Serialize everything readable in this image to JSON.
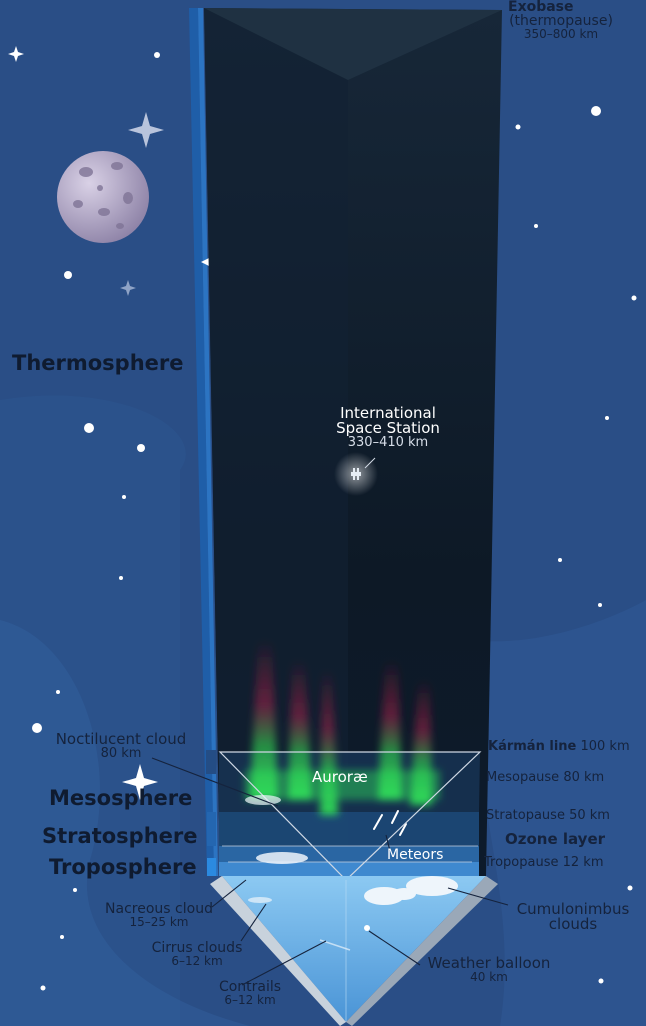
{
  "exobase": {
    "title": "Exobase",
    "subtitle": "(thermopause)",
    "range": "350–800 km"
  },
  "iss": {
    "line1": "International",
    "line2": "Space Station",
    "range": "330–410 km"
  },
  "layers": {
    "thermosphere": "Thermosphere",
    "mesosphere": "Mesosphere",
    "stratosphere": "Stratosphere",
    "troposphere": "Troposphere"
  },
  "boundaries": {
    "karman": {
      "name": "Kármán line",
      "alt": "100 km"
    },
    "mesopause": {
      "name": "Mesopause",
      "alt": "80 km"
    },
    "stratopause": {
      "name": "Stratopause",
      "alt": "50 km"
    },
    "ozone": {
      "name": "Ozone layer"
    },
    "tropopause": {
      "name": "Tropopause",
      "alt": "12 km"
    }
  },
  "phenomena": {
    "aurorae": "Auroræ",
    "meteors": "Meteors",
    "noctilucent": {
      "name": "Noctilucent cloud",
      "alt": "80 km"
    },
    "nacreous": {
      "name": "Nacreous cloud",
      "alt": "15–25 km"
    },
    "cirrus": {
      "name": "Cirrus clouds",
      "alt": "6–12 km"
    },
    "contrails": {
      "name": "Contrails",
      "alt": "6–12 km"
    },
    "balloon": {
      "name": "Weather balloon",
      "alt": "40 km"
    },
    "cumulonimbus": {
      "line1": "Cumulonimbus",
      "line2": "clouds"
    }
  },
  "colors": {
    "sky": "#2a4e86",
    "column_dark": "#0e1a2a",
    "aurora_green": "#2fe05a",
    "aurora_red": "#c0203a",
    "tropo_blue": "#6ab8ec"
  }
}
